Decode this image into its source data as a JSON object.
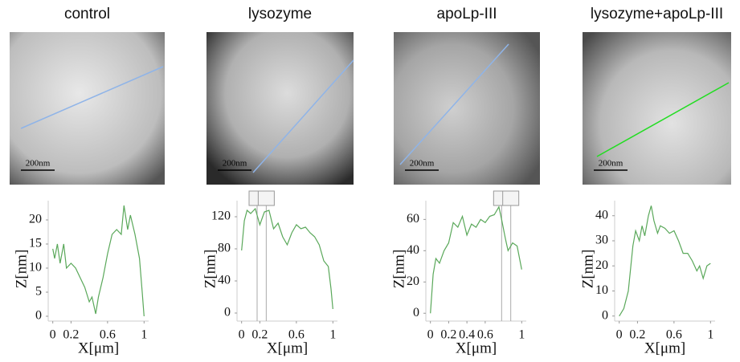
{
  "chart_data": [
    {
      "type": "line",
      "title": "control",
      "scale_bar_label": "200nm",
      "xlabel": "X[μm]",
      "ylabel": "Z[nm]",
      "color": "#5aa85a",
      "x": [
        0,
        0.02,
        0.05,
        0.08,
        0.12,
        0.15,
        0.2,
        0.25,
        0.3,
        0.35,
        0.4,
        0.43,
        0.47,
        0.5,
        0.55,
        0.6,
        0.65,
        0.7,
        0.75,
        0.78,
        0.82,
        0.85,
        0.9,
        0.95,
        0.98,
        1
      ],
      "values": [
        14,
        12,
        15,
        11,
        15,
        10,
        11,
        10,
        8,
        6,
        3,
        4,
        0.5,
        4,
        8,
        13,
        17,
        18,
        17,
        23,
        18,
        21,
        17,
        12,
        5,
        0
      ],
      "xlim": [
        -0.05,
        1.05
      ],
      "ylim": [
        -1,
        24
      ],
      "xticks": [
        0,
        0.2,
        0.6,
        1
      ],
      "yticks": [
        0,
        5,
        10,
        15,
        20
      ],
      "cursors": []
    },
    {
      "type": "line",
      "title": "lysozyme",
      "scale_bar_label": "200nm",
      "xlabel": "X[μm]",
      "ylabel": "Z[nm]",
      "color": "#5aa85a",
      "x": [
        0,
        0.03,
        0.06,
        0.1,
        0.15,
        0.2,
        0.25,
        0.3,
        0.35,
        0.4,
        0.45,
        0.5,
        0.55,
        0.6,
        0.65,
        0.7,
        0.75,
        0.8,
        0.85,
        0.9,
        0.95,
        0.98,
        1
      ],
      "values": [
        78,
        115,
        128,
        124,
        130,
        110,
        126,
        128,
        105,
        112,
        95,
        85,
        100,
        110,
        105,
        107,
        100,
        95,
        85,
        65,
        58,
        30,
        5
      ],
      "xlim": [
        -0.05,
        1.05
      ],
      "ylim": [
        -10,
        140
      ],
      "xticks": [
        0,
        0.2,
        0.6,
        1
      ],
      "yticks": [
        0,
        40,
        80,
        120
      ],
      "cursors": [
        0.17,
        0.27
      ]
    },
    {
      "type": "line",
      "title": "apoLp-III",
      "scale_bar_label": "200nm",
      "xlabel": "X[μm]",
      "ylabel": "Z[nm]",
      "color": "#5aa85a",
      "x": [
        0,
        0.03,
        0.06,
        0.1,
        0.15,
        0.2,
        0.25,
        0.3,
        0.35,
        0.4,
        0.45,
        0.5,
        0.55,
        0.6,
        0.65,
        0.7,
        0.75,
        0.78,
        0.82,
        0.85,
        0.9,
        0.95,
        1
      ],
      "values": [
        0,
        25,
        35,
        32,
        40,
        45,
        58,
        55,
        62,
        50,
        57,
        55,
        60,
        58,
        62,
        63,
        68,
        60,
        48,
        40,
        45,
        43,
        28
      ],
      "xlim": [
        -0.05,
        1.05
      ],
      "ylim": [
        -5,
        72
      ],
      "xticks": [
        0,
        0.2,
        0.4,
        0.6,
        1
      ],
      "yticks": [
        0,
        20,
        40,
        60
      ],
      "cursors": [
        0.78,
        0.88
      ]
    },
    {
      "type": "line",
      "title": "lysozyme+apoLp-III",
      "scale_bar_label": "200nm",
      "xlabel": "X[μm]",
      "ylabel": "Z[nm]",
      "color": "#5aa85a",
      "x": [
        0,
        0.05,
        0.1,
        0.15,
        0.18,
        0.22,
        0.25,
        0.28,
        0.32,
        0.35,
        0.38,
        0.42,
        0.45,
        0.5,
        0.55,
        0.6,
        0.65,
        0.7,
        0.75,
        0.8,
        0.85,
        0.88,
        0.92,
        0.96,
        1
      ],
      "values": [
        0,
        3,
        10,
        28,
        34,
        30,
        36,
        32,
        40,
        44,
        38,
        33,
        36,
        35,
        33,
        34,
        30,
        25,
        25,
        22,
        18,
        20,
        15,
        20,
        21
      ],
      "xlim": [
        -0.05,
        1.05
      ],
      "ylim": [
        -2,
        46
      ],
      "xticks": [
        0,
        0.2,
        0.6,
        1
      ],
      "yticks": [
        0,
        10,
        20,
        30,
        40
      ],
      "cursors": []
    }
  ]
}
